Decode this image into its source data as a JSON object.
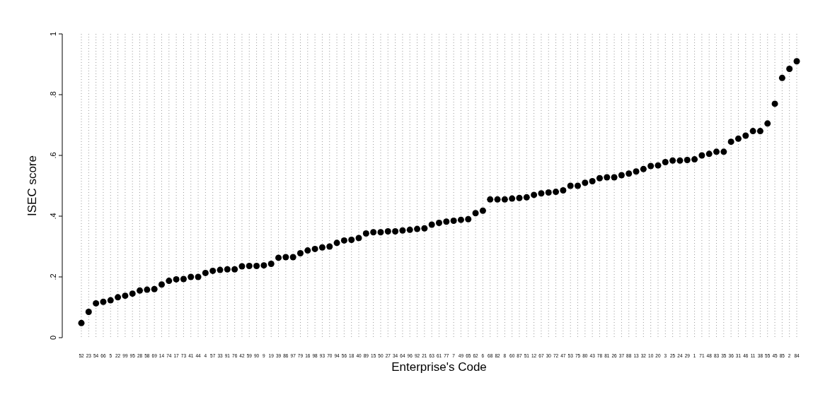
{
  "chart_data": {
    "type": "scatter",
    "xlabel": "Enterprise's Code",
    "ylabel": "ISEC score",
    "categories": [
      "52",
      "23",
      "54",
      "66",
      "5",
      "22",
      "99",
      "95",
      "28",
      "58",
      "69",
      "14",
      "74",
      "17",
      "73",
      "41",
      "44",
      "4",
      "57",
      "33",
      "91",
      "76",
      "42",
      "59",
      "90",
      "9",
      "19",
      "39",
      "86",
      "97",
      "79",
      "16",
      "98",
      "93",
      "70",
      "94",
      "56",
      "18",
      "40",
      "89",
      "15",
      "50",
      "27",
      "34",
      "64",
      "96",
      "92",
      "21",
      "63",
      "61",
      "77",
      "7",
      "49",
      "65",
      "62",
      "6",
      "68",
      "82",
      "8",
      "60",
      "87",
      "51",
      "12",
      "67",
      "30",
      "72",
      "47",
      "53",
      "75",
      "80",
      "43",
      "78",
      "81",
      "26",
      "37",
      "88",
      "13",
      "32",
      "10",
      "20",
      "3",
      "25",
      "24",
      "29",
      "1",
      "71",
      "48",
      "83",
      "35",
      "36",
      "31",
      "46",
      "11",
      "38",
      "55",
      "45",
      "85",
      "2",
      "84"
    ],
    "series": [
      {
        "color": "#000000",
        "values": [
          0.048,
          0.085,
          0.113,
          0.118,
          0.123,
          0.133,
          0.138,
          0.145,
          0.155,
          0.158,
          0.16,
          0.175,
          0.187,
          0.192,
          0.193,
          0.2,
          0.2,
          0.213,
          0.22,
          0.223,
          0.225,
          0.225,
          0.235,
          0.236,
          0.236,
          0.238,
          0.243,
          0.263,
          0.265,
          0.265,
          0.278,
          0.287,
          0.292,
          0.297,
          0.3,
          0.312,
          0.32,
          0.322,
          0.328,
          0.343,
          0.347,
          0.347,
          0.35,
          0.35,
          0.353,
          0.355,
          0.358,
          0.36,
          0.372,
          0.378,
          0.382,
          0.385,
          0.388,
          0.39,
          0.41,
          0.418,
          0.455,
          0.455,
          0.455,
          0.458,
          0.46,
          0.462,
          0.47,
          0.475,
          0.478,
          0.48,
          0.485,
          0.5,
          0.5,
          0.51,
          0.515,
          0.525,
          0.528,
          0.528,
          0.535,
          0.54,
          0.547,
          0.555,
          0.565,
          0.567,
          0.578,
          0.583,
          0.583,
          0.585,
          0.587,
          0.6,
          0.605,
          0.612,
          0.612,
          0.645,
          0.655,
          0.665,
          0.68,
          0.68,
          0.705,
          0.77,
          0.855,
          0.885,
          0.91
        ]
      }
    ],
    "ylim": [
      0,
      1
    ],
    "yticks": [
      0,
      {
        "value": 0.2,
        "label": ".2"
      },
      {
        "value": 0.4,
        "label": ".4"
      },
      {
        "value": 0.6,
        "label": ".6"
      },
      {
        "value": 0.8,
        "label": ".8"
      },
      1
    ],
    "grid": "x",
    "marker": "circle"
  }
}
